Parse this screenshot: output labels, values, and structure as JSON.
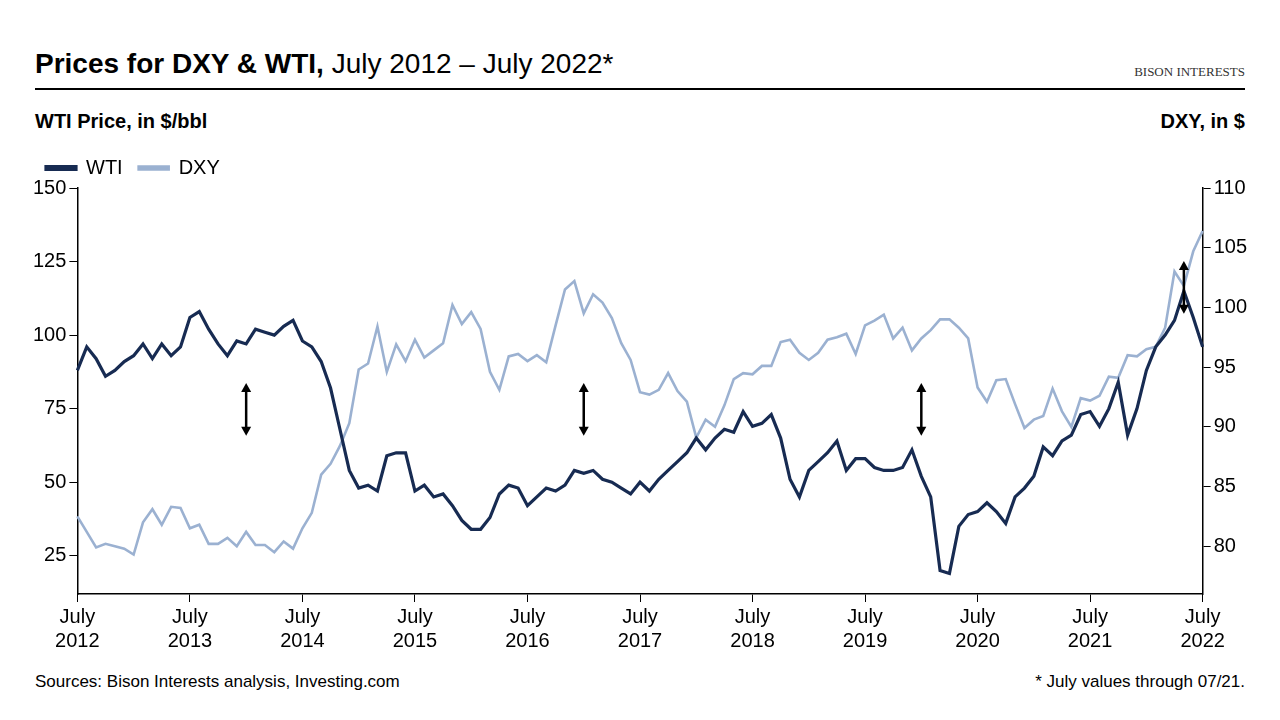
{
  "chart_data": {
    "type": "line",
    "title": "Prices for DXY & WTI, July 2012 – July 2022*",
    "brand": "BISON INTERESTS",
    "y_label": "WTI Price, in $/bbl",
    "y2_label": "DXY, in $",
    "source": "Sources: Bison Interests analysis, Investing.com",
    "note": "* July values through 07/21.",
    "categories": [
      "July 2012",
      null,
      null,
      null,
      null,
      null,
      null,
      null,
      null,
      null,
      null,
      null,
      "July 2013",
      null,
      null,
      null,
      null,
      null,
      null,
      null,
      null,
      null,
      null,
      null,
      "July 2014",
      null,
      null,
      null,
      null,
      null,
      null,
      null,
      null,
      null,
      null,
      null,
      "July 2015",
      null,
      null,
      null,
      null,
      null,
      null,
      null,
      null,
      null,
      null,
      null,
      "July 2016",
      null,
      null,
      null,
      null,
      null,
      null,
      null,
      null,
      null,
      null,
      null,
      "July 2017",
      null,
      null,
      null,
      null,
      null,
      null,
      null,
      null,
      null,
      null,
      null,
      "July 2018",
      null,
      null,
      null,
      null,
      null,
      null,
      null,
      null,
      null,
      null,
      null,
      "July 2019",
      null,
      null,
      null,
      null,
      null,
      null,
      null,
      null,
      null,
      null,
      null,
      "July 2020",
      null,
      null,
      null,
      null,
      null,
      null,
      null,
      null,
      null,
      null,
      null,
      "July 2021",
      null,
      null,
      null,
      null,
      null,
      null,
      null,
      null,
      null,
      null,
      null,
      "July 2022"
    ],
    "series": [
      {
        "name": "WTI",
        "color": "#172b52",
        "values": [
          88,
          96,
          92,
          86,
          88,
          91,
          93,
          97,
          92,
          97,
          93,
          96,
          106,
          108,
          102,
          97,
          93,
          98,
          97,
          102,
          101,
          100,
          103,
          105,
          98,
          96,
          91,
          82,
          68,
          54,
          48,
          49,
          47,
          59,
          60,
          60,
          47,
          49,
          45,
          46,
          42,
          37,
          34,
          34,
          38,
          46,
          49,
          48,
          42,
          45,
          48,
          47,
          49,
          54,
          53,
          54,
          51,
          50,
          48,
          46,
          50,
          47,
          51,
          54,
          57,
          60,
          65,
          61,
          65,
          68,
          67,
          74,
          69,
          70,
          73,
          65,
          51,
          45,
          54,
          57,
          60,
          64,
          54,
          58,
          58,
          55,
          54,
          54,
          55,
          61,
          52,
          45,
          20,
          19,
          35,
          39,
          40,
          43,
          40,
          36,
          45,
          48,
          52,
          62,
          59,
          64,
          66,
          73,
          74,
          69,
          75,
          84,
          66,
          75,
          88,
          96,
          100,
          105,
          115,
          106,
          96
        ]
      },
      {
        "name": "DXY",
        "color": "#9bb1d1",
        "axis": "y2",
        "values": [
          82.5,
          81.2,
          79.9,
          80.2,
          80.0,
          79.8,
          79.3,
          82.0,
          83.1,
          81.8,
          83.3,
          83.2,
          81.5,
          81.8,
          80.2,
          80.2,
          80.7,
          80.0,
          81.2,
          80.1,
          80.1,
          79.5,
          80.4,
          79.8,
          81.5,
          82.8,
          86.0,
          86.9,
          88.4,
          90.3,
          94.8,
          95.3,
          98.4,
          94.6,
          96.9,
          95.5,
          97.3,
          95.8,
          96.4,
          97.0,
          100.2,
          98.6,
          99.6,
          98.2,
          94.6,
          93.1,
          95.9,
          96.1,
          95.5,
          96.0,
          95.4,
          98.5,
          101.5,
          102.2,
          99.5,
          101.1,
          100.4,
          99.1,
          97.0,
          95.6,
          92.9,
          92.7,
          93.1,
          94.5,
          93.0,
          92.1,
          89.1,
          90.6,
          90.0,
          91.8,
          94.0,
          94.5,
          94.4,
          95.1,
          95.1,
          97.1,
          97.3,
          96.2,
          95.6,
          96.2,
          97.3,
          97.5,
          97.8,
          96.1,
          98.5,
          98.9,
          99.4,
          97.4,
          98.3,
          96.4,
          97.4,
          98.1,
          99.0,
          99.0,
          98.3,
          97.4,
          93.3,
          92.1,
          93.9,
          94.0,
          91.9,
          89.9,
          90.6,
          90.9,
          93.2,
          91.3,
          90.0,
          92.4,
          92.2,
          92.6,
          94.2,
          94.1,
          96.0,
          95.9,
          96.5,
          96.7,
          98.3,
          103.0,
          101.8,
          104.7,
          106.4
        ]
      }
    ],
    "ylim": [
      12,
      150
    ],
    "yticks": [
      25,
      50,
      75,
      100,
      125,
      150
    ],
    "y2lim": [
      76,
      110
    ],
    "y2ticks": [
      80,
      85,
      90,
      95,
      100,
      105,
      110
    ],
    "grid": false,
    "legend": "upper left"
  }
}
